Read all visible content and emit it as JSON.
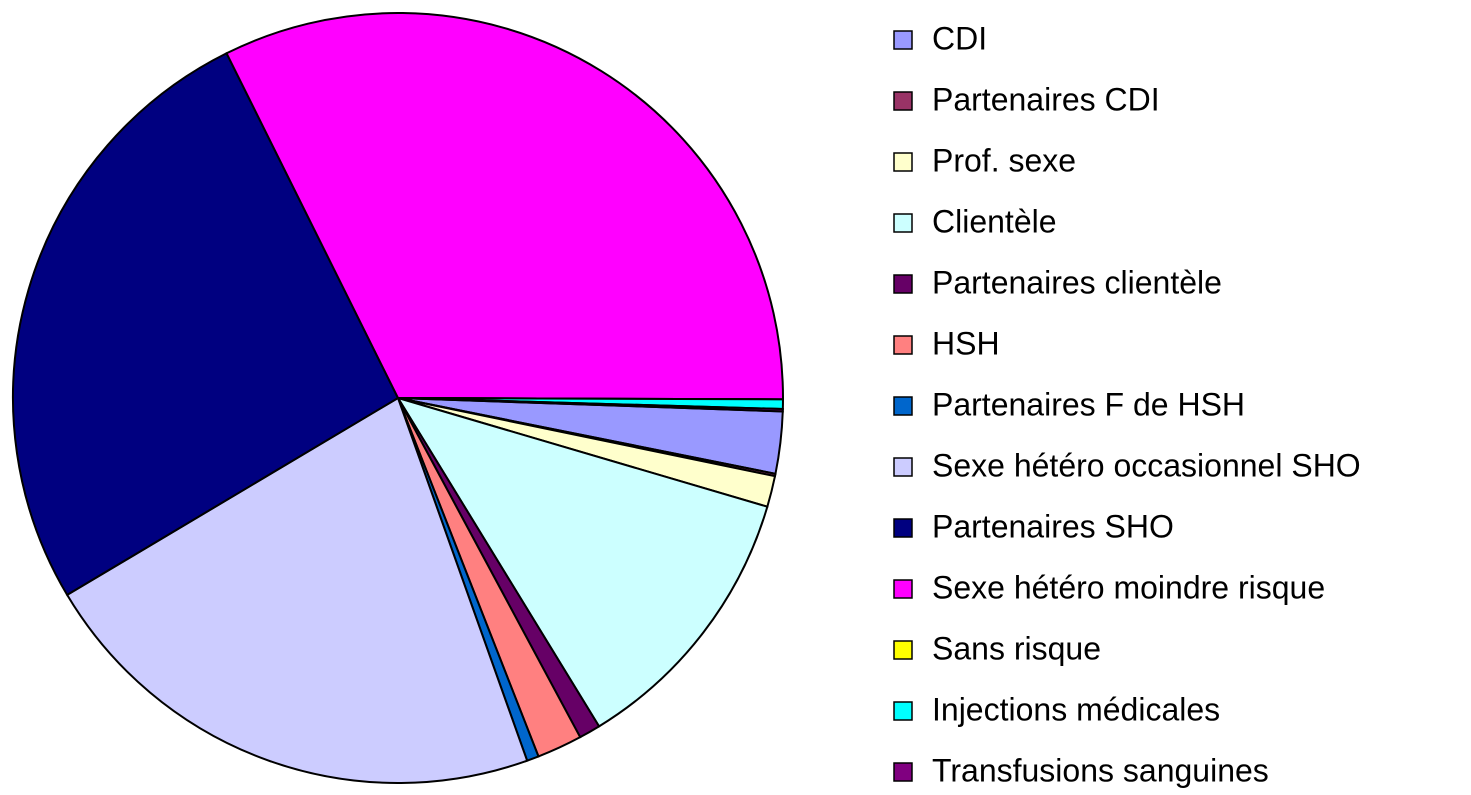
{
  "chart_data": {
    "type": "pie",
    "categories": [
      "CDI",
      "Partenaires CDI",
      "Prof. sexe",
      "Clientèle",
      "Partenaires clientèle",
      "HSH",
      "Partenaires F de  HSH",
      "Sexe hétéro occasionnel SHO",
      "Partenaires SHO",
      "Sexe hétéro moindre risque",
      "Sans risque",
      "Injections médicales",
      "Transfusions sanguines"
    ],
    "values": [
      2.6,
      0.1,
      1.3,
      11.7,
      0.9,
      1.9,
      0.5,
      21.9,
      26.2,
      32.4,
      0,
      0.4,
      0.1
    ],
    "colors": [
      "#9999ff",
      "#993366",
      "#ffffcc",
      "#ccffff",
      "#660066",
      "#ff8080",
      "#0066cc",
      "#ccccff",
      "#000080",
      "#ff00ff",
      "#ffff00",
      "#00ffff",
      "#800080"
    ]
  }
}
